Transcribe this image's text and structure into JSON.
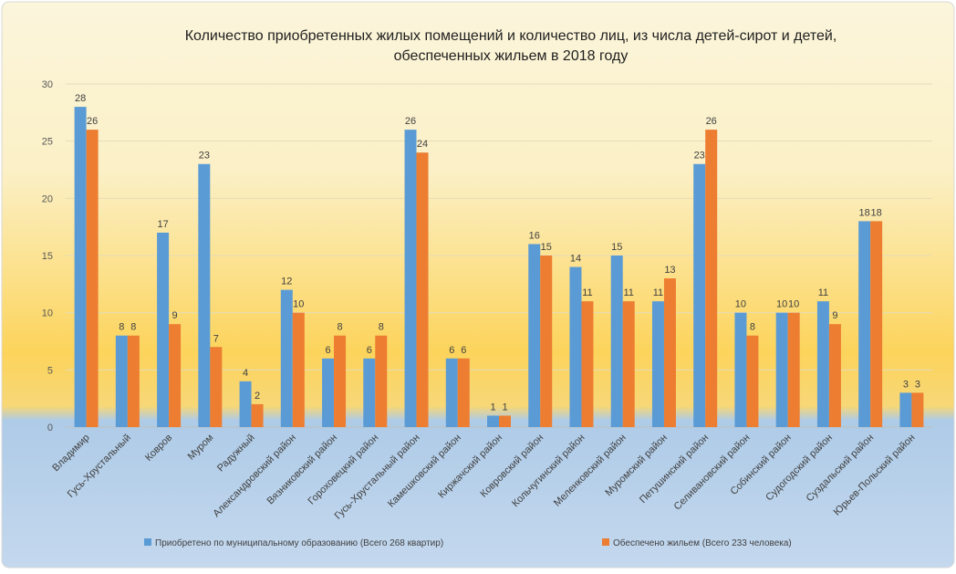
{
  "chart_data": {
    "type": "bar",
    "title_line1": "Количество приобретенных жилых помещений и количество лиц, из числа детей-сирот и детей,",
    "title_line2": "обеспеченных жильем в 2018 году",
    "categories": [
      "Владимир",
      "Гусь-Хрустальный",
      "Ковров",
      "Муром",
      "Радужный",
      "Александровский район",
      "Вязниковский район",
      "Гороховецкий район",
      "Гусь-Хрустальный район",
      "Камешковский район",
      "Киржачский район",
      "Ковровский район",
      "Кольчугинский район",
      "Меленковский район",
      "Муромский район",
      "Петушинский район",
      "Селивановский район",
      "Собинский район",
      "Судогодский район",
      "Суздальский район",
      "Юрьев-Польский район"
    ],
    "series": [
      {
        "name": "Приобретено по муниципальному образованию (Всего 268 квартир)",
        "color": "#5b9bd5",
        "values": [
          28,
          8,
          17,
          23,
          4,
          12,
          6,
          6,
          26,
          6,
          1,
          16,
          14,
          15,
          11,
          23,
          10,
          10,
          11,
          18,
          3
        ]
      },
      {
        "name": "Обеспечено жильем (Всего 233 человека)",
        "color": "#ed7d31",
        "values": [
          26,
          8,
          9,
          7,
          2,
          10,
          8,
          8,
          24,
          6,
          1,
          15,
          11,
          11,
          13,
          26,
          8,
          10,
          9,
          18,
          3
        ]
      }
    ],
    "ylim": [
      0,
      30
    ],
    "yticks": [
      0,
      5,
      10,
      15,
      20,
      25,
      30
    ],
    "grid": true,
    "legend_position": "bottom"
  }
}
